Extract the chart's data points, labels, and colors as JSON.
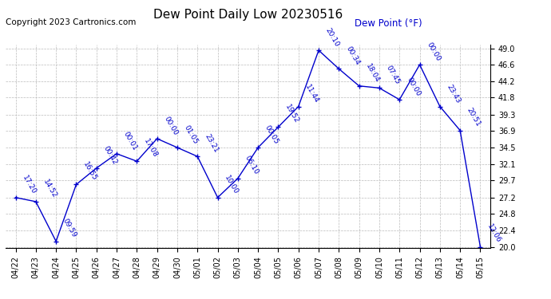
{
  "title": "Dew Point Daily Low 20230516",
  "copyright": "Copyright 2023 Cartronics.com",
  "legend_label": "Dew Point (°F)",
  "dates": [
    "04/22",
    "04/23",
    "04/24",
    "04/25",
    "04/26",
    "04/27",
    "04/28",
    "04/29",
    "04/30",
    "05/01",
    "05/02",
    "05/03",
    "05/04",
    "05/05",
    "05/06",
    "05/07",
    "05/08",
    "05/09",
    "05/10",
    "05/11",
    "05/12",
    "05/13",
    "05/14",
    "05/15"
  ],
  "values": [
    27.2,
    26.6,
    20.8,
    29.1,
    31.5,
    33.6,
    32.5,
    35.8,
    34.5,
    33.2,
    27.2,
    30.0,
    34.5,
    37.5,
    40.5,
    48.7,
    46.0,
    43.5,
    43.2,
    41.5,
    46.6,
    40.5,
    37.0,
    20.0
  ],
  "time_labels": [
    "17:20",
    "14:52",
    "09:59",
    "16:55",
    "00:42",
    "00:01",
    "17:08",
    "00:00",
    "01:05",
    "23:21",
    "10:00",
    "06:10",
    "00:05",
    "19:52",
    "11:44",
    "20:10",
    "00:34",
    "18:04",
    "07:45",
    "00:00",
    "00:00",
    "23:43",
    "20:51",
    "12:06"
  ],
  "line_color": "#0000cc",
  "marker_color": "#0000cc",
  "background_color": "#ffffff",
  "grid_color": "#bbbbbb",
  "ylim_min": 20.0,
  "ylim_max": 49.0,
  "yticks": [
    20.0,
    22.4,
    24.8,
    27.2,
    29.7,
    32.1,
    34.5,
    36.9,
    39.3,
    41.8,
    44.2,
    46.6,
    49.0
  ],
  "title_fontsize": 11,
  "label_fontsize": 7,
  "annotation_fontsize": 6.5,
  "copyright_fontsize": 7.5,
  "legend_fontsize": 8.5
}
